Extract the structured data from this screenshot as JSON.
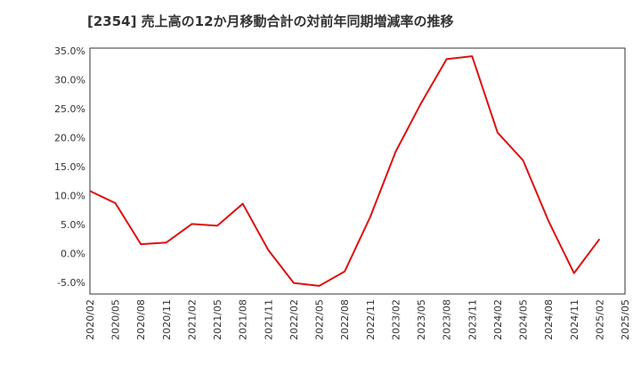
{
  "chart_data": {
    "type": "line",
    "title": "[2354]  売上高の12か月移動合計の対前年同期増減率の推移",
    "xlabel": "",
    "ylabel": "",
    "ylim": [
      -7,
      35.5
    ],
    "yticks": [
      35,
      30,
      25,
      20,
      15,
      10,
      5,
      0,
      -5
    ],
    "ytick_labels": [
      "35.0%",
      "30.0%",
      "25.0%",
      "20.0%",
      "15.0%",
      "10.0%",
      "5.0%",
      "0.0%",
      "-5.0%"
    ],
    "categories": [
      "2020/02",
      "2020/05",
      "2020/08",
      "2020/11",
      "2021/02",
      "2021/05",
      "2021/08",
      "2021/11",
      "2022/02",
      "2022/05",
      "2022/08",
      "2022/11",
      "2023/02",
      "2023/05",
      "2023/08",
      "2023/11",
      "2024/02",
      "2024/05",
      "2024/08",
      "2024/11",
      "2025/02",
      "2025/05"
    ],
    "series": [
      {
        "name": "対前年同期増減率",
        "color": "#dd1111",
        "values": [
          10.8,
          8.7,
          1.6,
          1.9,
          5.1,
          4.8,
          8.6,
          0.6,
          -5.1,
          -5.6,
          -3.1,
          6.3,
          17.6,
          26.0,
          33.6,
          34.1,
          20.9,
          16.1,
          5.6,
          -3.4,
          2.5,
          null
        ]
      }
    ],
    "grid": true,
    "grid_color": "#888888",
    "axis_color": "#333333"
  }
}
